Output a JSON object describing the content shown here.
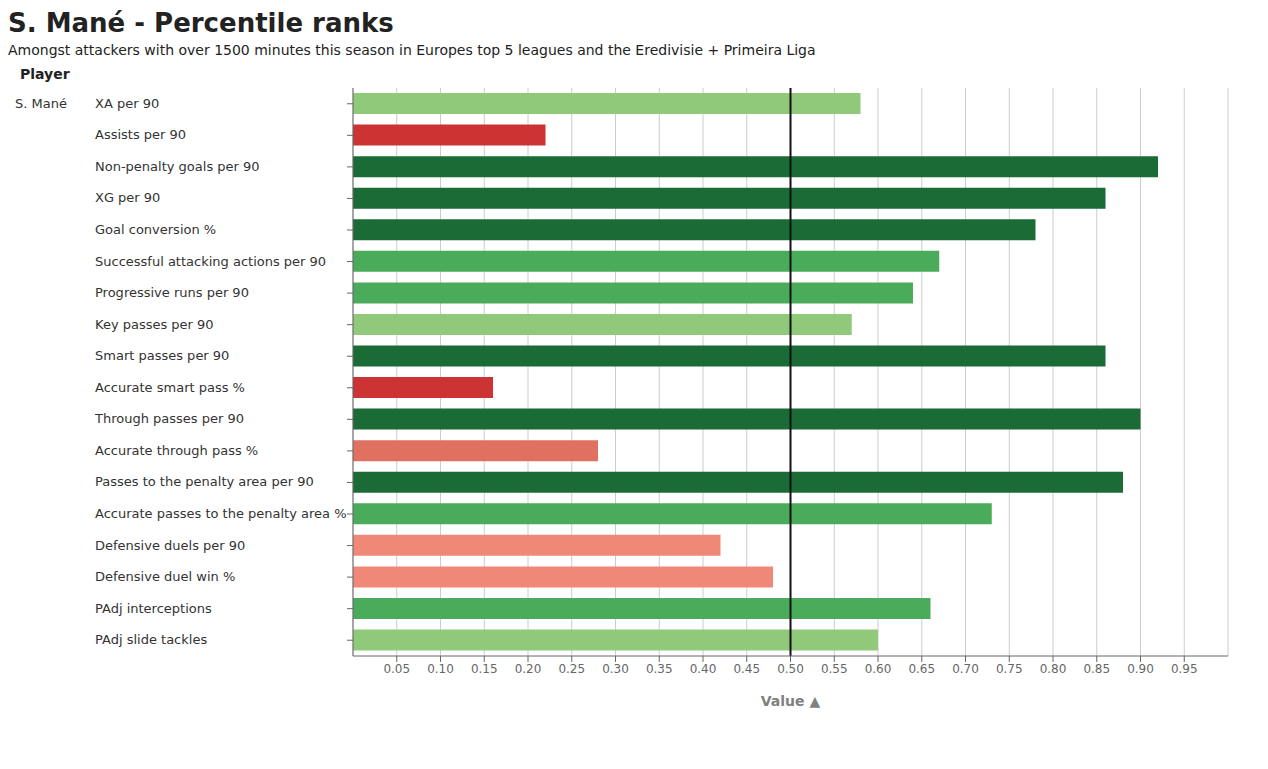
{
  "chart_data": {
    "type": "bar",
    "orientation": "horizontal",
    "title": "S. Mané - Percentile ranks",
    "subtitle": "Amongst attackers with over 1500 minutes this season in Europes top 5 leagues and the Eredivisie + Primeira Liga",
    "xlabel": "Value  ▲",
    "annotations": [
      "Player",
      "S. Mané"
    ],
    "categories": [
      "XA per 90",
      "Assists per 90",
      "Non-penalty goals per 90",
      "XG per 90",
      "Goal conversion %",
      "Successful attacking actions per 90",
      "Progressive runs per 90",
      "Key passes per 90",
      "Smart passes per 90",
      "Accurate smart pass %",
      "Through passes per 90",
      "Accurate through pass %",
      "Passes to the penalty area per 90",
      "Accurate passes to the penalty area %",
      "Defensive duels per 90",
      "Defensive duel win %",
      "PAdj interceptions",
      "PAdj slide tackles"
    ],
    "values": [
      0.58,
      0.22,
      0.92,
      0.86,
      0.78,
      0.67,
      0.64,
      0.57,
      0.86,
      0.16,
      0.9,
      0.28,
      0.88,
      0.73,
      0.42,
      0.48,
      0.66,
      0.6
    ],
    "colors": [
      "#90c97a",
      "#cc3333",
      "#1a6b35",
      "#1a6b35",
      "#1a6b35",
      "#4aab5a",
      "#4aab5a",
      "#90c97a",
      "#1a6b35",
      "#cc3333",
      "#1a6b35",
      "#e07060",
      "#1a6b35",
      "#4aab5a",
      "#f08878",
      "#f08878",
      "#4aab5a",
      "#90c97a"
    ],
    "xlim": [
      0.0,
      1.0
    ],
    "xticks": [
      0.05,
      {
        "value": 0.1,
        "label": "0.10"
      },
      0.15,
      {
        "value": 0.2,
        "label": "0.20"
      },
      0.25,
      {
        "value": 0.3,
        "label": "0.30"
      },
      0.35,
      {
        "value": 0.4,
        "label": "0.40"
      },
      0.45,
      {
        "value": 0.5,
        "label": "0.50"
      },
      0.55,
      {
        "value": 0.6,
        "label": "0.60"
      },
      0.65,
      {
        "value": 0.7,
        "label": "0.70"
      },
      0.75,
      {
        "value": 0.8,
        "label": "0.80"
      },
      0.85,
      {
        "value": 0.9,
        "label": "0.90"
      },
      0.95
    ],
    "grid": true,
    "reference_line": {
      "x": 0.5,
      "color": "#111111"
    }
  }
}
